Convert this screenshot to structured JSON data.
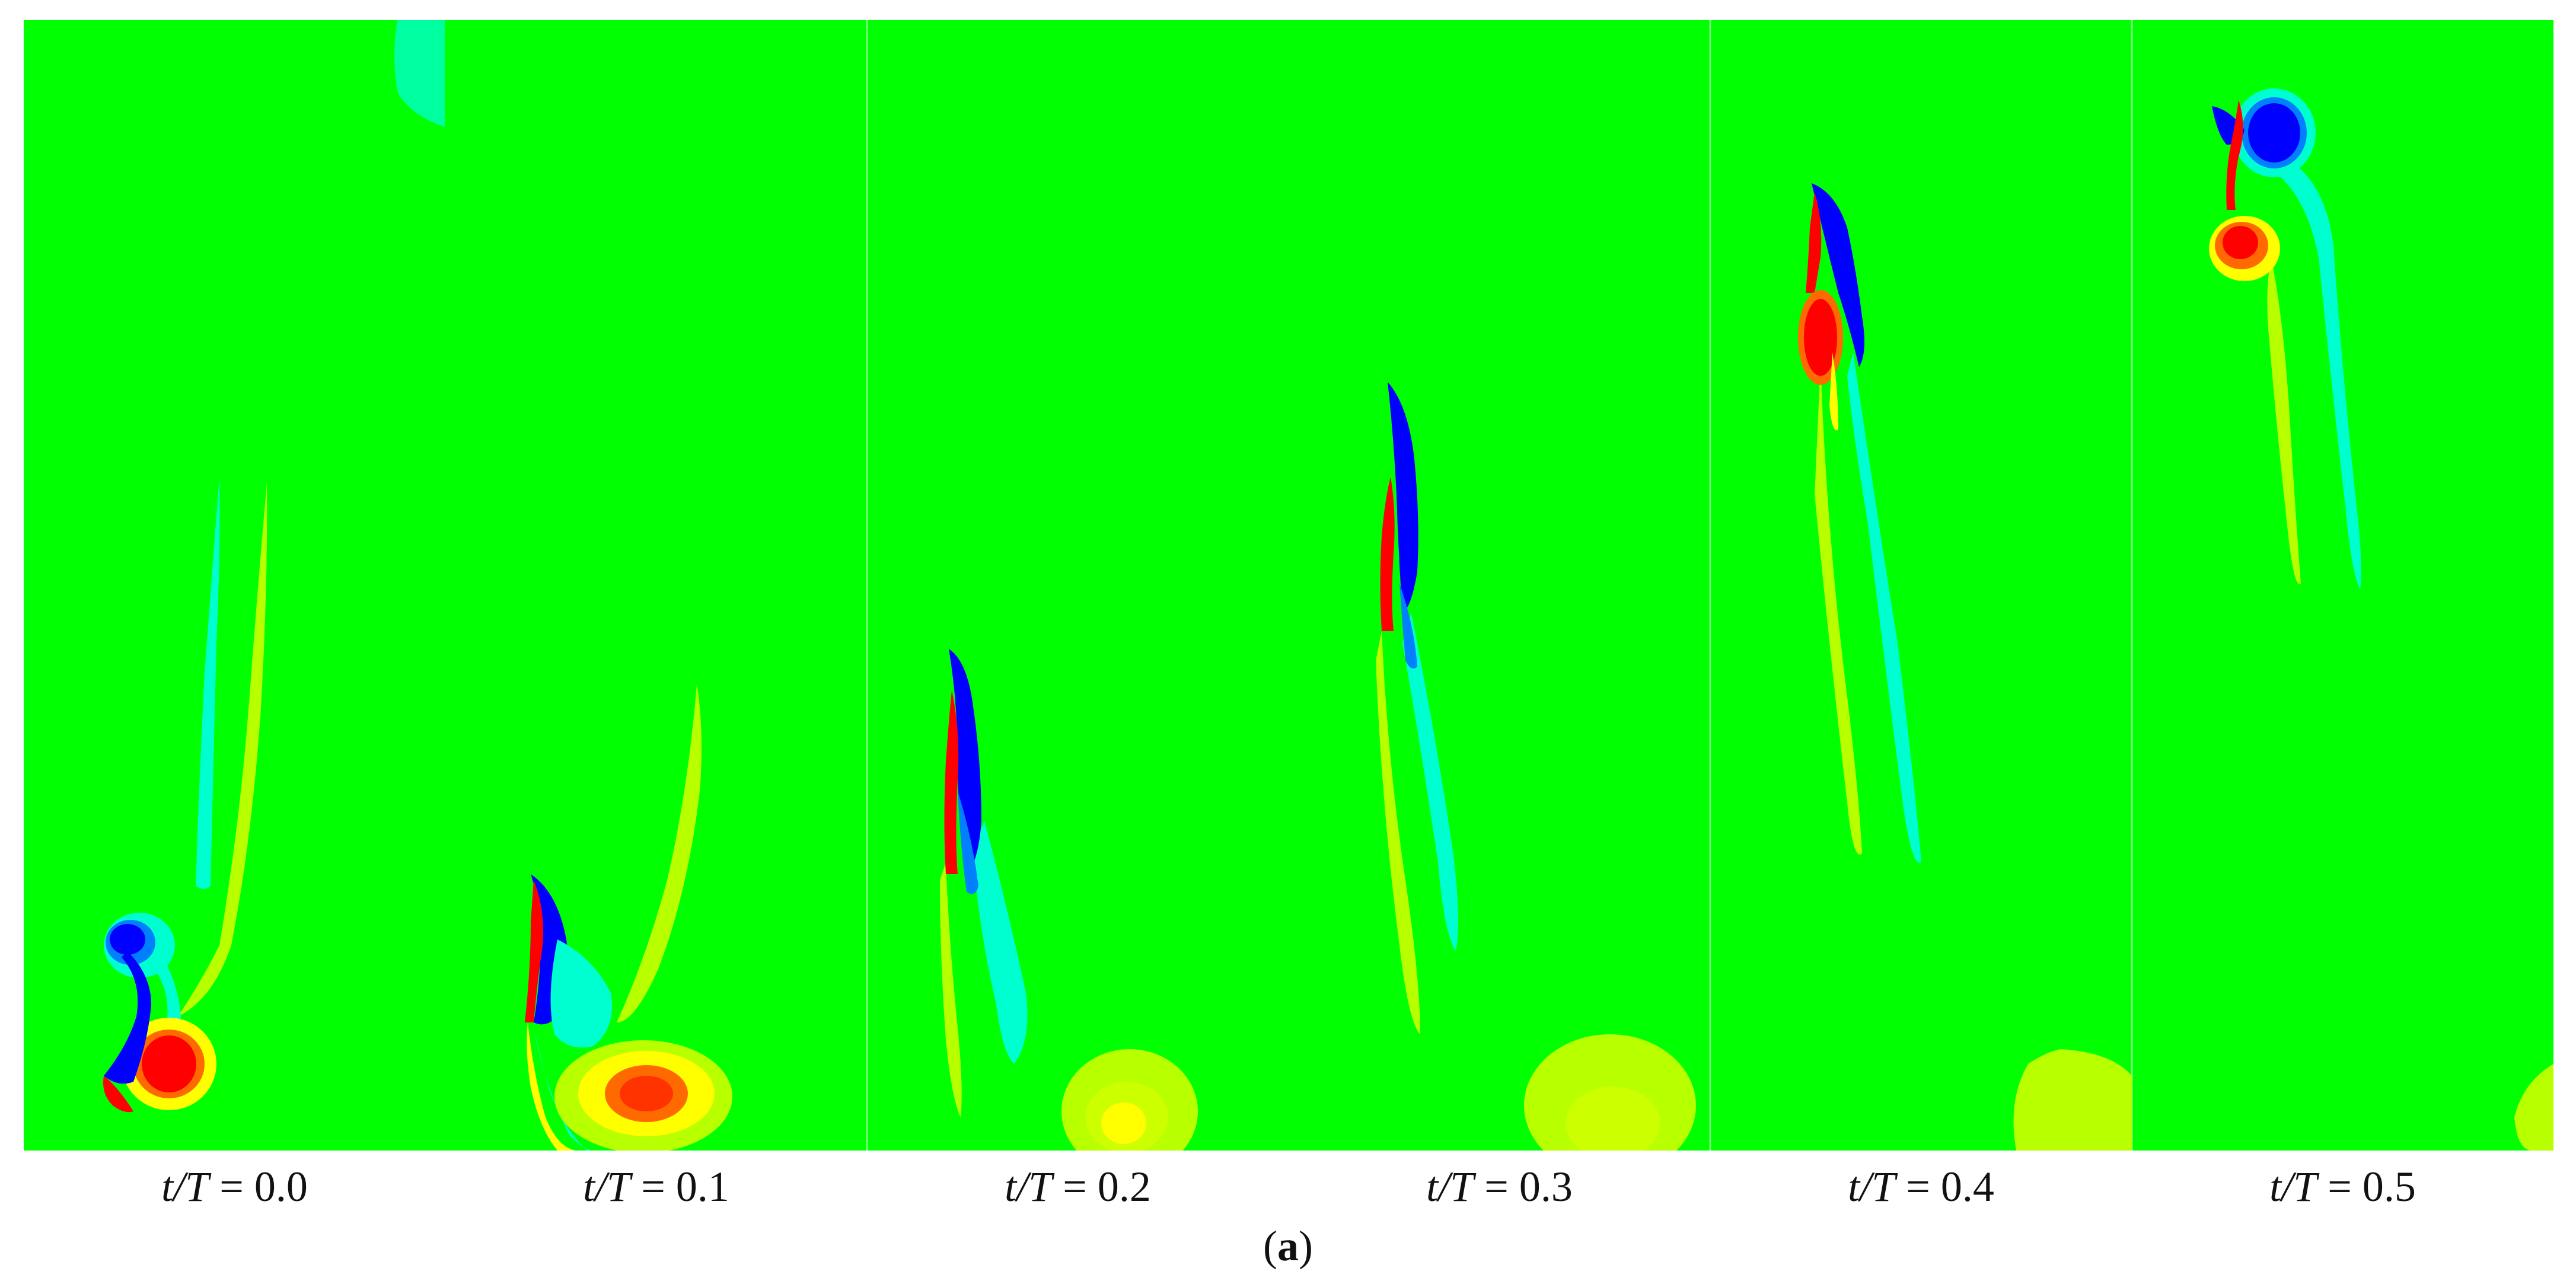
{
  "frames": [
    {
      "var": "t/T",
      "eq": " = ",
      "value": "0.0"
    },
    {
      "var": "t/T",
      "eq": " = ",
      "value": "0.1"
    },
    {
      "var": "t/T",
      "eq": " = ",
      "value": "0.2"
    },
    {
      "var": "t/T",
      "eq": " = ",
      "value": "0.3"
    },
    {
      "var": "t/T",
      "eq": " = ",
      "value": "0.4"
    },
    {
      "var": "t/T",
      "eq": " = ",
      "value": "0.5"
    }
  ],
  "caption": {
    "open": "(",
    "letter": "a",
    "close": ")"
  },
  "colors": {
    "background": "#00ff00",
    "positive_strong": "#ff0000",
    "positive_mid": "#ff6a00",
    "positive_weak": "#ffff00",
    "positive_faint": "#b8ff00",
    "negative_strong": "#0000ff",
    "negative_mid": "#0080ff",
    "negative_weak": "#00ffd0",
    "negative_faint": "#40ff90"
  }
}
